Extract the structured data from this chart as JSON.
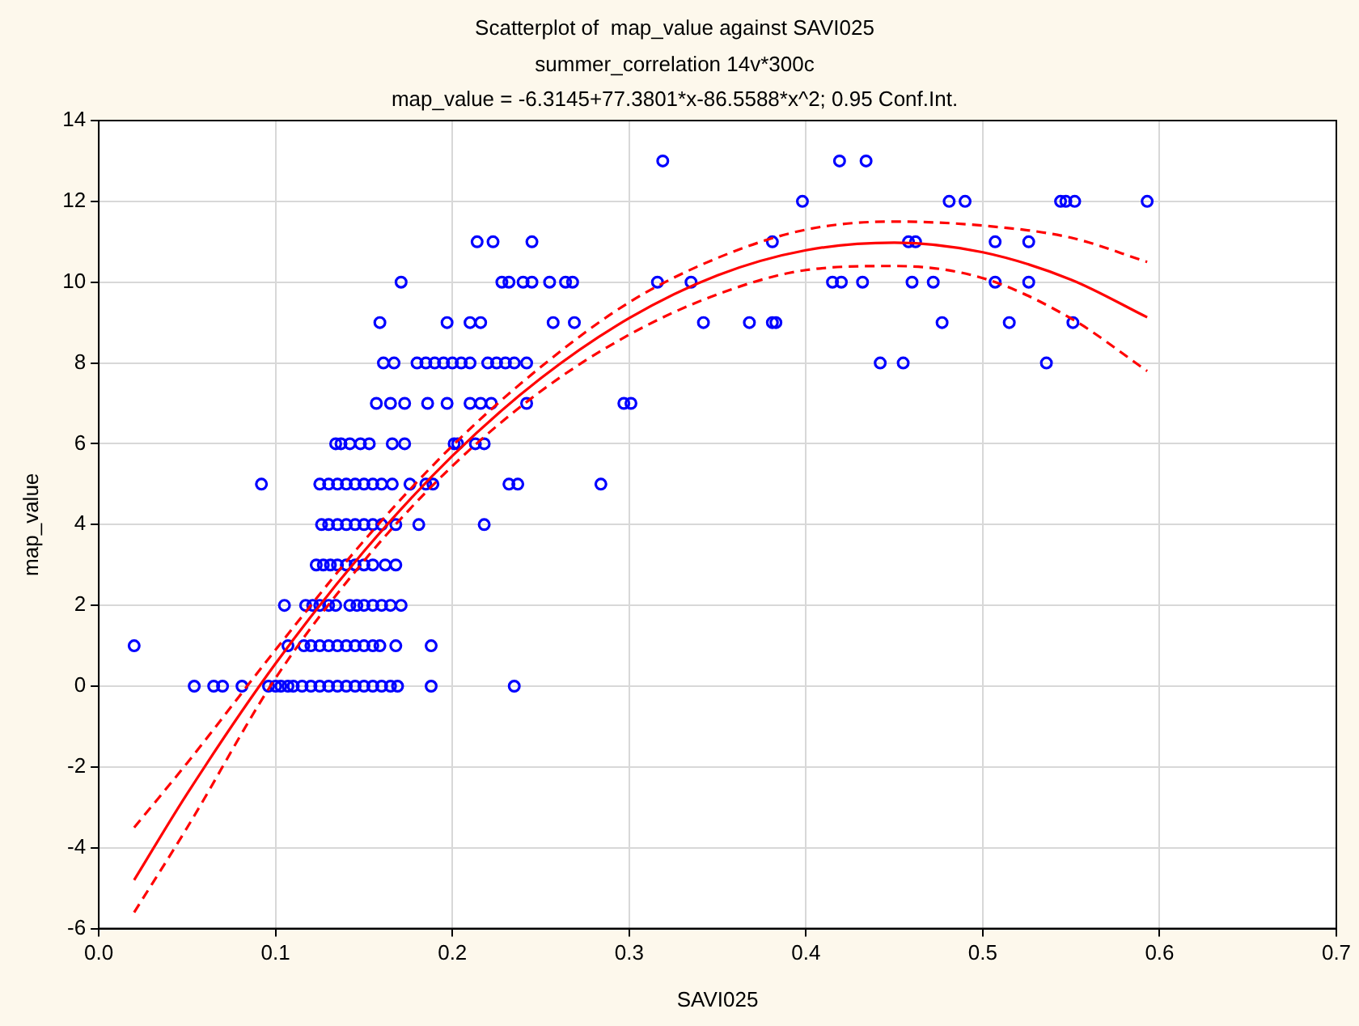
{
  "chart_data": {
    "type": "scatter",
    "title": "Scatterplot of  map_value against SAVI025",
    "subtitle": "summer_correlation 14v*300c",
    "annotations": [
      "map_value = -6.3145+77.3801*x-86.5588*x^2; 0.95 Conf.Int."
    ],
    "xlabel": "SAVI025",
    "ylabel": "map_value",
    "xlim": [
      0,
      0.7
    ],
    "xticks": [
      {
        "value": 0,
        "label": "0.0"
      },
      0.1,
      0.2,
      0.3,
      0.4,
      0.5,
      0.6,
      0.7
    ],
    "ylim": [
      -6,
      14
    ],
    "yticks": [
      -6,
      -4,
      -2,
      0,
      2,
      4,
      6,
      8,
      10,
      12,
      14
    ],
    "grid": true,
    "legend": false,
    "series": [
      {
        "type": "scatter",
        "color": "#0000ff",
        "marker": "circle",
        "x": [
          0.054,
          0.065,
          0.07,
          0.081,
          0.096,
          0.1,
          0.103,
          0.107,
          0.11,
          0.115,
          0.12,
          0.125,
          0.13,
          0.135,
          0.14,
          0.145,
          0.15,
          0.155,
          0.16,
          0.165,
          0.169,
          0.188,
          0.235,
          0.02,
          0.107,
          0.116,
          0.12,
          0.125,
          0.13,
          0.135,
          0.14,
          0.145,
          0.15,
          0.155,
          0.159,
          0.168,
          0.188,
          0.105,
          0.117,
          0.121,
          0.125,
          0.13,
          0.134,
          0.142,
          0.146,
          0.15,
          0.155,
          0.16,
          0.165,
          0.171,
          0.123,
          0.127,
          0.131,
          0.135,
          0.14,
          0.145,
          0.15,
          0.155,
          0.162,
          0.168,
          0.126,
          0.13,
          0.135,
          0.14,
          0.145,
          0.15,
          0.155,
          0.16,
          0.168,
          0.181,
          0.218,
          0.092,
          0.125,
          0.13,
          0.135,
          0.14,
          0.145,
          0.15,
          0.155,
          0.16,
          0.166,
          0.176,
          0.185,
          0.189,
          0.232,
          0.237,
          0.284,
          0.134,
          0.137,
          0.142,
          0.148,
          0.153,
          0.166,
          0.173,
          0.201,
          0.203,
          0.213,
          0.218,
          0.157,
          0.165,
          0.173,
          0.186,
          0.197,
          0.21,
          0.216,
          0.222,
          0.242,
          0.297,
          0.301,
          0.161,
          0.167,
          0.18,
          0.185,
          0.19,
          0.195,
          0.2,
          0.205,
          0.21,
          0.22,
          0.225,
          0.23,
          0.235,
          0.242,
          0.442,
          0.455,
          0.536,
          0.159,
          0.197,
          0.21,
          0.216,
          0.257,
          0.269,
          0.342,
          0.368,
          0.381,
          0.383,
          0.477,
          0.515,
          0.551,
          0.171,
          0.228,
          0.232,
          0.24,
          0.245,
          0.255,
          0.264,
          0.268,
          0.316,
          0.335,
          0.415,
          0.42,
          0.432,
          0.46,
          0.472,
          0.507,
          0.526,
          0.214,
          0.223,
          0.245,
          0.381,
          0.458,
          0.462,
          0.507,
          0.526,
          0.398,
          0.481,
          0.49,
          0.544,
          0.547,
          0.552,
          0.593,
          0.319,
          0.419,
          0.434
        ],
        "values": [
          0,
          0,
          0,
          0,
          0,
          0,
          0,
          0,
          0,
          0,
          0,
          0,
          0,
          0,
          0,
          0,
          0,
          0,
          0,
          0,
          0,
          0,
          0,
          1,
          1,
          1,
          1,
          1,
          1,
          1,
          1,
          1,
          1,
          1,
          1,
          1,
          1,
          2,
          2,
          2,
          2,
          2,
          2,
          2,
          2,
          2,
          2,
          2,
          2,
          2,
          3,
          3,
          3,
          3,
          3,
          3,
          3,
          3,
          3,
          3,
          4,
          4,
          4,
          4,
          4,
          4,
          4,
          4,
          4,
          4,
          4,
          5,
          5,
          5,
          5,
          5,
          5,
          5,
          5,
          5,
          5,
          5,
          5,
          5,
          5,
          5,
          5,
          6,
          6,
          6,
          6,
          6,
          6,
          6,
          6,
          6,
          6,
          6,
          7,
          7,
          7,
          7,
          7,
          7,
          7,
          7,
          7,
          7,
          7,
          8,
          8,
          8,
          8,
          8,
          8,
          8,
          8,
          8,
          8,
          8,
          8,
          8,
          8,
          8,
          8,
          8,
          9,
          9,
          9,
          9,
          9,
          9,
          9,
          9,
          9,
          9,
          9,
          9,
          9,
          10,
          10,
          10,
          10,
          10,
          10,
          10,
          10,
          10,
          10,
          10,
          10,
          10,
          10,
          10,
          10,
          10,
          11,
          11,
          11,
          11,
          11,
          11,
          11,
          11,
          12,
          12,
          12,
          12,
          12,
          12,
          12,
          13,
          13,
          13
        ]
      },
      {
        "type": "line",
        "color": "#ff0000",
        "marker": "none",
        "line_style": "solid",
        "x": [
          0.02,
          0.05,
          0.1,
          0.15,
          0.2,
          0.25,
          0.3,
          0.35,
          0.4,
          0.45,
          0.5,
          0.55,
          0.593
        ],
        "values": [
          -4.8,
          -2.66,
          0.56,
          3.34,
          5.7,
          7.62,
          9.11,
          10.17,
          10.79,
          10.98,
          10.74,
          10.06,
          9.13
        ]
      },
      {
        "type": "line",
        "color": "#ff0000",
        "marker": "none",
        "line_style": "dashed",
        "x": [
          0.02,
          0.05,
          0.1,
          0.15,
          0.2,
          0.25,
          0.3,
          0.35,
          0.4,
          0.45,
          0.5,
          0.55,
          0.593
        ],
        "values": [
          -5.6,
          -3.5,
          0.2,
          3.1,
          5.45,
          7.3,
          8.7,
          9.7,
          10.3,
          10.4,
          10.1,
          9.1,
          7.8
        ]
      },
      {
        "type": "line",
        "color": "#ff0000",
        "marker": "none",
        "line_style": "dashed",
        "x": [
          0.02,
          0.05,
          0.1,
          0.15,
          0.2,
          0.25,
          0.3,
          0.35,
          0.4,
          0.45,
          0.5,
          0.55,
          0.593
        ],
        "values": [
          -3.5,
          -1.9,
          0.9,
          3.6,
          5.95,
          7.9,
          9.5,
          10.6,
          11.3,
          11.5,
          11.4,
          11.1,
          10.5
        ]
      }
    ]
  }
}
